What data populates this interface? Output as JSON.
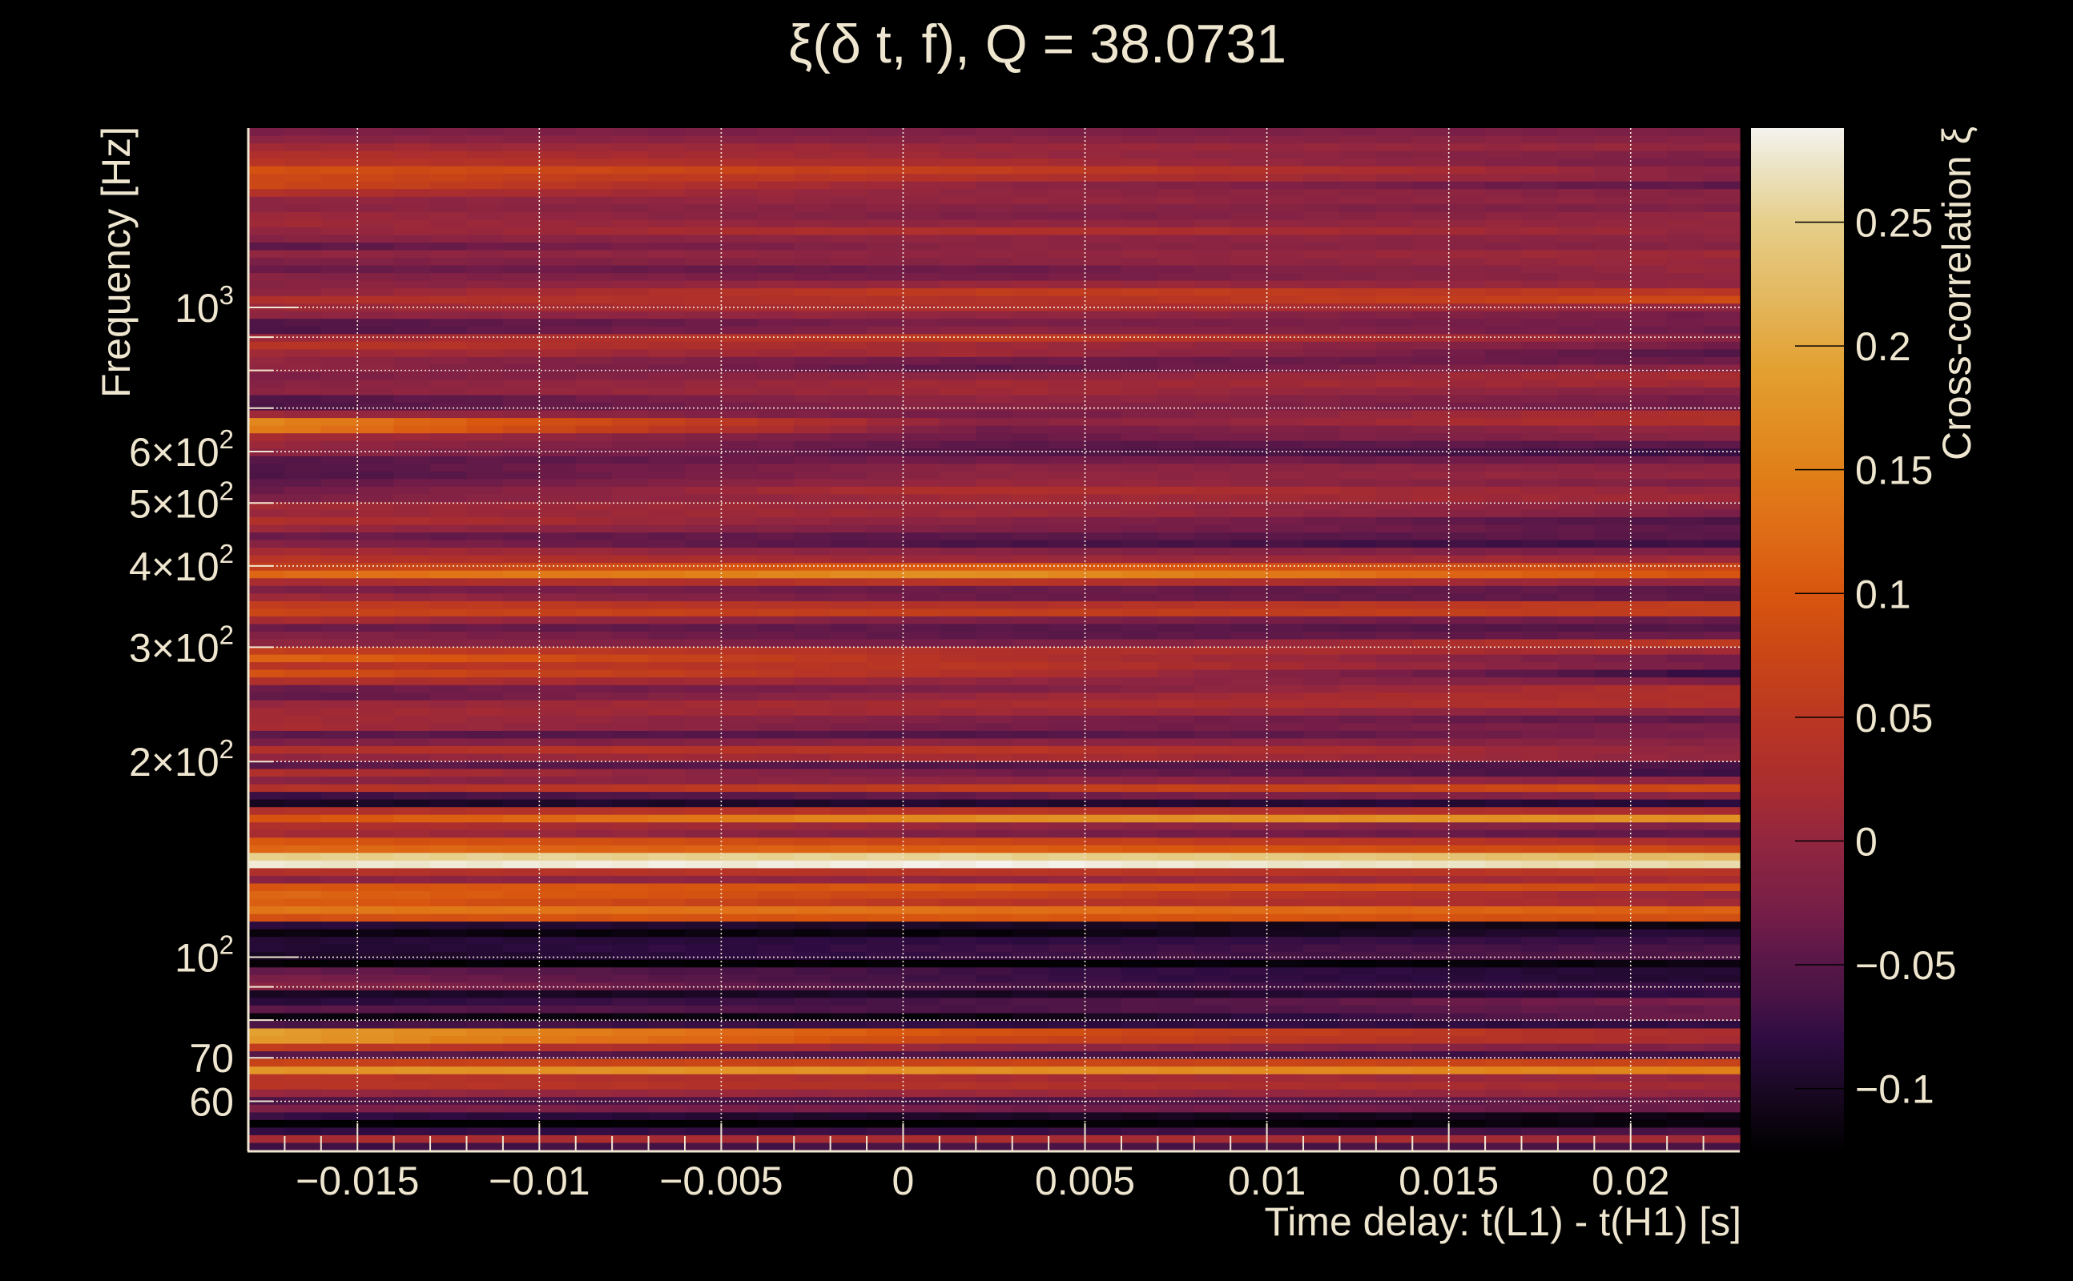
{
  "chart_data": {
    "type": "heatmap",
    "title": "ξ(δ t, f), Q = 38.0731",
    "xlabel": "Time delay: t(L1) - t(H1) [s]",
    "ylabel": "Frequency [Hz]",
    "colorbar_label": "Cross-correlation ξ",
    "xlim": [
      -0.018,
      0.023
    ],
    "ylim": [
      50.4,
      1888
    ],
    "yscale": "log",
    "grid": true,
    "x_ticks": [
      {
        "value": -0.015,
        "label": "−0.015"
      },
      {
        "value": -0.01,
        "label": "−0.01"
      },
      {
        "value": -0.005,
        "label": "−0.005"
      },
      {
        "value": 0,
        "label": "0"
      },
      {
        "value": 0.005,
        "label": "0.005"
      },
      {
        "value": 0.01,
        "label": "0.01"
      },
      {
        "value": 0.015,
        "label": "0.015"
      },
      {
        "value": 0.02,
        "label": "0.02"
      }
    ],
    "y_ticks": [
      {
        "value": 1000,
        "base": "10",
        "sup": "3"
      },
      {
        "value": 600,
        "base": "6×10",
        "sup": "2"
      },
      {
        "value": 500,
        "base": "5×10",
        "sup": "2"
      },
      {
        "value": 400,
        "base": "4×10",
        "sup": "2"
      },
      {
        "value": 300,
        "base": "3×10",
        "sup": "2"
      },
      {
        "value": 200,
        "base": "2×10",
        "sup": "2"
      },
      {
        "value": 100,
        "base": "10",
        "sup": "2"
      },
      {
        "value": 70,
        "base": "70",
        "sup": ""
      },
      {
        "value": 60,
        "base": "60",
        "sup": ""
      }
    ],
    "y_grid_values": [
      1000,
      900,
      800,
      700,
      600,
      500,
      400,
      300,
      200,
      100,
      90,
      80,
      70,
      60
    ],
    "colorbar_range": [
      -0.126,
      0.288
    ],
    "colorbar_ticks": [
      {
        "value": 0.25,
        "label": "0.25"
      },
      {
        "value": 0.2,
        "label": "0.2"
      },
      {
        "value": 0.15,
        "label": "0.15"
      },
      {
        "value": 0.1,
        "label": "0.1"
      },
      {
        "value": 0.05,
        "label": "0.05"
      },
      {
        "value": 0,
        "label": "0"
      },
      {
        "value": -0.05,
        "label": "−0.05"
      },
      {
        "value": -0.1,
        "label": "−0.1"
      }
    ],
    "colormap": [
      [
        -0.126,
        "#000000"
      ],
      [
        -0.1,
        "#1a0824"
      ],
      [
        -0.08,
        "#2e0c42"
      ],
      [
        -0.062,
        "#4a1445"
      ],
      [
        -0.047,
        "#5a1848"
      ],
      [
        -0.03,
        "#741d48"
      ],
      [
        -0.012,
        "#862343"
      ],
      [
        0.0,
        "#922640"
      ],
      [
        0.02,
        "#a82c30"
      ],
      [
        0.045,
        "#b83525"
      ],
      [
        0.072,
        "#c84418"
      ],
      [
        0.1,
        "#d8560f"
      ],
      [
        0.13,
        "#e07018"
      ],
      [
        0.15,
        "#e08018"
      ],
      [
        0.19,
        "#e3a030"
      ],
      [
        0.22,
        "#e3b860"
      ],
      [
        0.25,
        "#e6cf8a"
      ],
      [
        0.275,
        "#ede6cc"
      ],
      [
        0.288,
        "#f5f2ee"
      ]
    ],
    "n_time_bins": 41,
    "sample_times_s": [
      -0.018,
      0.0025,
      0.023
    ],
    "z_rows_high_to_low_freq": [
      [
        -0.022,
        -0.022,
        -0.022
      ],
      [
        -0.008,
        -0.012,
        -0.012
      ],
      [
        0.012,
        0.006,
        0.0
      ],
      [
        0.033,
        0.006,
        -0.022
      ],
      [
        0.045,
        0.02,
        -0.03
      ],
      [
        0.09,
        0.06,
        -0.012
      ],
      [
        0.08,
        0.033,
        -0.012
      ],
      [
        0.08,
        -0.004,
        -0.047
      ],
      [
        0.033,
        -0.004,
        -0.012
      ],
      [
        -0.004,
        0.0,
        -0.008
      ],
      [
        -0.007,
        -0.012,
        -0.022
      ],
      [
        0.012,
        -0.022,
        0.0
      ],
      [
        0.012,
        -0.004,
        0.002
      ],
      [
        -0.004,
        0.033,
        0.0
      ],
      [
        -0.012,
        -0.004,
        -0.008
      ],
      [
        -0.047,
        -0.008,
        -0.012
      ],
      [
        -0.004,
        -0.004,
        0.012
      ],
      [
        -0.022,
        -0.008,
        0.006
      ],
      [
        -0.036,
        -0.036,
        0.006
      ],
      [
        -0.012,
        -0.03,
        0.0
      ],
      [
        -0.012,
        0.006,
        0.0
      ],
      [
        -0.008,
        0.06,
        0.045
      ],
      [
        0.033,
        0.033,
        0.082
      ],
      [
        0.006,
        0.033,
        0.0
      ],
      [
        -0.008,
        0.0,
        -0.03
      ],
      [
        -0.055,
        -0.022,
        -0.03
      ],
      [
        -0.06,
        -0.008,
        -0.036
      ],
      [
        0.006,
        0.06,
        -0.012
      ],
      [
        0.045,
        0.012,
        -0.03
      ],
      [
        0.012,
        0.012,
        -0.055
      ],
      [
        0.0,
        -0.036,
        -0.036
      ],
      [
        0.0,
        -0.047,
        -0.004
      ],
      [
        -0.022,
        -0.004,
        0.02
      ],
      [
        -0.012,
        0.012,
        0.012
      ],
      [
        -0.008,
        0.012,
        -0.012
      ],
      [
        -0.06,
        0.0,
        -0.03
      ],
      [
        -0.06,
        -0.008,
        -0.036
      ],
      [
        0.012,
        -0.03,
        0.033
      ],
      [
        0.16,
        -0.012,
        0.033
      ],
      [
        0.15,
        -0.03,
        0.0
      ],
      [
        0.02,
        -0.036,
        -0.008
      ],
      [
        0.006,
        -0.047,
        -0.047
      ],
      [
        -0.004,
        -0.055,
        -0.072
      ],
      [
        -0.052,
        -0.03,
        -0.036
      ],
      [
        -0.055,
        -0.008,
        -0.008
      ],
      [
        -0.062,
        -0.004,
        0.0
      ],
      [
        -0.047,
        0.006,
        -0.022
      ],
      [
        -0.036,
        0.033,
        0.0
      ],
      [
        -0.022,
        0.012,
        0.012
      ],
      [
        0.012,
        0.006,
        -0.012
      ],
      [
        0.006,
        0.012,
        -0.022
      ],
      [
        0.033,
        -0.012,
        -0.062
      ],
      [
        0.006,
        -0.022,
        -0.047
      ],
      [
        -0.036,
        -0.047,
        -0.047
      ],
      [
        -0.012,
        -0.062,
        -0.072
      ],
      [
        0.02,
        -0.012,
        -0.022
      ],
      [
        0.045,
        0.006,
        0.012
      ],
      [
        0.06,
        0.11,
        0.072
      ],
      [
        0.12,
        0.17,
        0.09
      ],
      [
        0.02,
        0.045,
        -0.004
      ],
      [
        -0.022,
        -0.036,
        -0.047
      ],
      [
        0.012,
        -0.036,
        -0.047
      ],
      [
        0.06,
        0.033,
        0.06
      ],
      [
        0.072,
        0.06,
        0.06
      ],
      [
        0.02,
        -0.022,
        -0.036
      ],
      [
        -0.036,
        -0.047,
        -0.055
      ],
      [
        -0.012,
        -0.047,
        -0.036
      ],
      [
        -0.004,
        -0.03,
        0.06
      ],
      [
        0.06,
        0.033,
        0.012
      ],
      [
        0.12,
        0.033,
        -0.036
      ],
      [
        0.045,
        0.045,
        -0.03
      ],
      [
        0.09,
        0.033,
        -0.08
      ],
      [
        0.033,
        0.0,
        -0.022
      ],
      [
        -0.036,
        -0.022,
        0.033
      ],
      [
        -0.047,
        0.006,
        0.033
      ],
      [
        0.002,
        0.02,
        0.033
      ],
      [
        0.012,
        0.012,
        -0.012
      ],
      [
        0.02,
        -0.022,
        -0.047
      ],
      [
        0.02,
        -0.03,
        -0.022
      ],
      [
        -0.047,
        -0.055,
        -0.022
      ],
      [
        -0.022,
        -0.008,
        -0.012
      ],
      [
        0.033,
        0.045,
        -0.004
      ],
      [
        -0.004,
        0.02,
        0.0
      ],
      [
        -0.047,
        -0.055,
        -0.062
      ],
      [
        0.033,
        -0.03,
        -0.072
      ],
      [
        -0.012,
        -0.004,
        -0.004
      ],
      [
        0.033,
        0.06,
        0.082
      ],
      [
        -0.075,
        -0.036,
        -0.004
      ],
      [
        -0.1,
        -0.092,
        -0.085
      ],
      [
        0.033,
        0.045,
        0.02
      ],
      [
        0.09,
        0.17,
        0.17
      ],
      [
        0.033,
        0.0,
        -0.022
      ],
      [
        0.02,
        -0.022,
        -0.047
      ],
      [
        0.1,
        0.072,
        0.02
      ],
      [
        0.12,
        0.11,
        0.072
      ],
      [
        0.25,
        0.255,
        0.22
      ],
      [
        0.275,
        0.285,
        0.26
      ],
      [
        0.033,
        0.045,
        0.045
      ],
      [
        -0.012,
        0.0,
        0.02
      ],
      [
        0.1,
        0.1,
        0.082
      ],
      [
        0.12,
        0.072,
        0.0
      ],
      [
        0.11,
        0.045,
        0.012
      ],
      [
        0.14,
        0.13,
        0.11
      ],
      [
        0.09,
        0.1,
        0.09
      ],
      [
        -0.085,
        -0.1,
        -0.115
      ],
      [
        -0.115,
        -0.118,
        -0.085
      ],
      [
        -0.09,
        -0.08,
        -0.072
      ],
      [
        -0.092,
        -0.072,
        -0.062
      ],
      [
        -0.1,
        -0.072,
        -0.055
      ],
      [
        -0.123,
        -0.125,
        -0.115
      ],
      [
        -0.036,
        -0.072,
        -0.092
      ],
      [
        -0.022,
        -0.072,
        -0.092
      ],
      [
        -0.008,
        -0.062,
        -0.072
      ],
      [
        -0.1,
        -0.1,
        -0.08
      ],
      [
        -0.085,
        -0.062,
        -0.022
      ],
      [
        -0.047,
        -0.062,
        -0.036
      ],
      [
        -0.115,
        -0.115,
        -0.03
      ],
      [
        -0.06,
        -0.08,
        -0.08
      ],
      [
        0.19,
        0.09,
        0.02
      ],
      [
        0.185,
        0.072,
        0.02
      ],
      [
        0.06,
        0.0,
        -0.022
      ],
      [
        -0.047,
        -0.062,
        -0.072
      ],
      [
        0.07,
        0.072,
        0.072
      ],
      [
        0.175,
        0.17,
        0.15
      ],
      [
        0.045,
        0.02,
        0.0
      ],
      [
        0.045,
        0.033,
        0.012
      ],
      [
        0.0,
        0.006,
        0.0
      ],
      [
        -0.06,
        -0.062,
        -0.036
      ],
      [
        -0.022,
        -0.03,
        -0.036
      ],
      [
        -0.075,
        -0.1,
        -0.115
      ],
      [
        -0.126,
        -0.125,
        -0.115
      ],
      [
        -0.08,
        -0.072,
        -0.062
      ],
      [
        0.02,
        0.02,
        0.012
      ],
      [
        -0.07,
        -0.062,
        -0.062
      ]
    ]
  }
}
